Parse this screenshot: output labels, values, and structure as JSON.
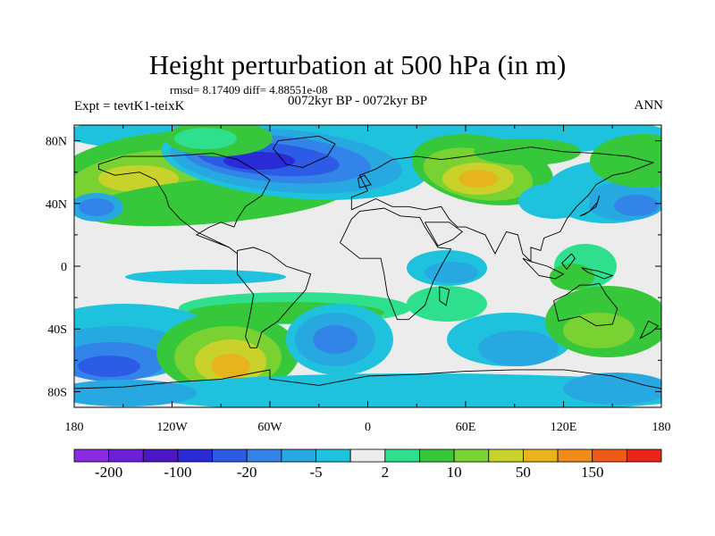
{
  "title": "Height perturbation at 500 hPa (in m)",
  "stats": "rmsd= 8.17409 diff= 4.88551e-08",
  "expt": "Expt = tevtK1-teixK",
  "period": "0072kyr BP - 0072kyr BP",
  "season": "ANN",
  "lat_ticks": [
    "80N",
    "40N",
    "0",
    "40S",
    "80S"
  ],
  "lat_values": [
    80,
    40,
    0,
    -40,
    -80
  ],
  "lon_ticks": [
    "180",
    "120W",
    "60W",
    "0",
    "60E",
    "120E",
    "180"
  ],
  "lon_values": [
    -180,
    -120,
    -60,
    0,
    60,
    120,
    180
  ],
  "colorbar": {
    "colors": [
      "#8a2be2",
      "#6a1fd8",
      "#4b16c4",
      "#2a2ad6",
      "#2c5be6",
      "#3384e8",
      "#27a8e0",
      "#1ec2dc",
      "#ececec",
      "#2ee08e",
      "#36c83a",
      "#7ad232",
      "#c8d22a",
      "#e8b41e",
      "#f08a18",
      "#f05a18",
      "#e8261a"
    ],
    "labels": [
      "-200",
      "-100",
      "-20",
      "-5",
      "2",
      "10",
      "50",
      "150"
    ]
  },
  "field_colors": {
    "neutral": "#ececec",
    "b1": "#1ec2dc",
    "b2": "#27a8e0",
    "b3": "#3384e8",
    "b4": "#2c5be6",
    "b5": "#2a2ad6",
    "g1": "#2ee08e",
    "g2": "#36c83a",
    "g3": "#7ad232",
    "g4": "#c8d22a",
    "g5": "#e8b41e"
  }
}
